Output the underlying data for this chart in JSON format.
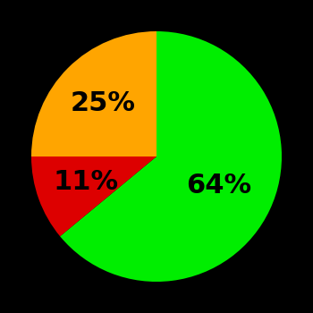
{
  "slices": [
    64,
    11,
    25
  ],
  "colors": [
    "#00ee00",
    "#dd0000",
    "#ffa500"
  ],
  "labels": [
    "64%",
    "11%",
    "25%"
  ],
  "background_color": "#000000",
  "startangle": 90,
  "label_fontsize": 22,
  "label_fontweight": "bold",
  "label_radii": [
    0.55,
    0.6,
    0.6
  ]
}
